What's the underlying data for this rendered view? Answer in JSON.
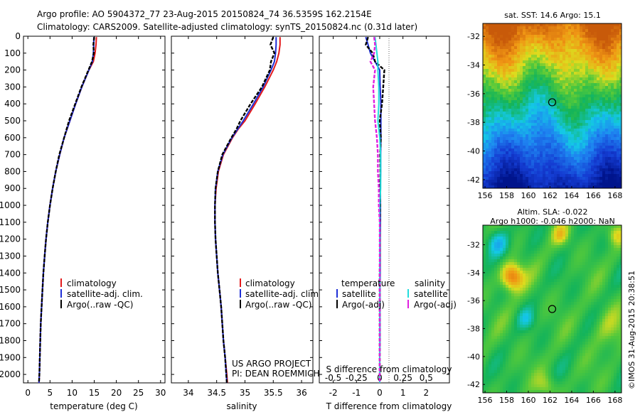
{
  "header": {
    "line1": "Argo profile: AO 5904372_77 23-Aug-2015 20150824_74 36.5359S 162.2154E",
    "line2": "Climatology: CARS2009. Satellite-adjusted climatology: synTS_20150824.nc (0.31d later)"
  },
  "colors": {
    "climatology": "#e31a1c",
    "satellite": "#1f2fd6",
    "argo": "#000000",
    "sat_salinity": "#22dddd",
    "argo_salinity": "#e020e0"
  },
  "chart_data": [
    {
      "id": "temperature",
      "type": "line",
      "xlabel": "temperature (deg C)",
      "xlim": [
        -1,
        31
      ],
      "xticks": [
        0,
        5,
        10,
        15,
        20,
        25,
        30
      ],
      "ylim": [
        2050,
        0
      ],
      "yticks": [
        0,
        100,
        200,
        300,
        400,
        500,
        600,
        700,
        800,
        900,
        1000,
        1100,
        1200,
        1300,
        1400,
        1500,
        1600,
        1700,
        1800,
        1900,
        2000
      ],
      "legend": [
        "climatology",
        "satellite-adj. clim.",
        "Argo(..raw -QC)"
      ],
      "depth": [
        5,
        50,
        100,
        150,
        200,
        300,
        400,
        500,
        600,
        700,
        800,
        900,
        1000,
        1100,
        1200,
        1300,
        1400,
        1500,
        1600,
        1700,
        1800,
        1900,
        2000,
        2050
      ],
      "series": [
        {
          "name": "climatology",
          "color_key": "climatology",
          "values": [
            15.5,
            15.4,
            15.2,
            14.8,
            13.8,
            12.2,
            10.8,
            9.5,
            8.2,
            7.2,
            6.3,
            5.6,
            5.0,
            4.5,
            4.1,
            3.8,
            3.5,
            3.3,
            3.1,
            2.9,
            2.8,
            2.7,
            2.6,
            2.5
          ]
        },
        {
          "name": "satellite-adj. clim.",
          "color_key": "satellite",
          "values": [
            14.9,
            14.9,
            14.8,
            14.6,
            13.8,
            12.2,
            10.8,
            9.5,
            8.2,
            7.2,
            6.3,
            5.6,
            5.0,
            4.5,
            4.1,
            3.8,
            3.5,
            3.3,
            3.1,
            2.9,
            2.8,
            2.7,
            2.6,
            2.5
          ]
        },
        {
          "name": "Argo(..raw -QC)",
          "color_key": "argo",
          "values": [
            15.0,
            14.8,
            14.9,
            14.5,
            13.7,
            12.1,
            10.7,
            9.3,
            8.2,
            7.1,
            6.3,
            5.6,
            5.0,
            4.5,
            4.1,
            3.8,
            3.5,
            3.3,
            3.1,
            2.9,
            2.8,
            2.7,
            2.6,
            2.5
          ]
        }
      ]
    },
    {
      "id": "salinity",
      "type": "line",
      "xlabel": "salinity",
      "xlim": [
        33.7,
        36.2
      ],
      "xticks": [
        34,
        34.5,
        35,
        35.5,
        36
      ],
      "xticklabels": [
        "34",
        "34.5",
        "35",
        "35.5",
        "36"
      ],
      "ylim": [
        2050,
        0
      ],
      "legend": [
        "climatology",
        "satellite-adj. clim.",
        "Argo(..raw -QC)"
      ],
      "annotation": [
        "US ARGO PROJECT",
        "PI: DEAN ROEMMICH"
      ],
      "depth": [
        5,
        50,
        100,
        150,
        200,
        300,
        400,
        500,
        550,
        600,
        700,
        800,
        900,
        1000,
        1100,
        1200,
        1300,
        1400,
        1500,
        1600,
        1700,
        1800,
        1900,
        2000,
        2050
      ],
      "series": [
        {
          "name": "climatology",
          "color_key": "climatology",
          "values": [
            35.62,
            35.62,
            35.6,
            35.56,
            35.5,
            35.35,
            35.18,
            35.0,
            34.88,
            34.78,
            34.62,
            34.53,
            34.49,
            34.47,
            34.47,
            34.48,
            34.5,
            34.52,
            34.55,
            34.58,
            34.6,
            34.62,
            34.65,
            34.68,
            34.69
          ]
        },
        {
          "name": "satellite-adj. clim.",
          "color_key": "satellite",
          "values": [
            35.55,
            35.55,
            35.54,
            35.52,
            35.46,
            35.32,
            35.15,
            34.97,
            34.87,
            34.77,
            34.61,
            34.52,
            34.48,
            34.47,
            34.47,
            34.48,
            34.5,
            34.52,
            34.55,
            34.58,
            34.6,
            34.62,
            34.65,
            34.67,
            34.68
          ]
        },
        {
          "name": "Argo(..raw -QC)",
          "color_key": "argo",
          "values": [
            35.5,
            35.45,
            35.52,
            35.46,
            35.44,
            35.3,
            35.1,
            34.92,
            34.85,
            34.76,
            34.6,
            34.52,
            34.48,
            34.47,
            34.47,
            34.48,
            34.5,
            34.52,
            34.55,
            34.58,
            34.6,
            34.62,
            34.65,
            34.67,
            34.68
          ]
        }
      ]
    },
    {
      "id": "difference",
      "type": "line",
      "xlabel": "T difference from climatology",
      "x2label": "S difference from climatology",
      "xlim": [
        -2.6,
        3.0
      ],
      "xticks": [
        -2,
        -1,
        0,
        1,
        2
      ],
      "x2ticks": [
        -0.5,
        -0.25,
        0,
        0.25,
        0.5
      ],
      "x2ticklabels": [
        "-0.5",
        "-0.25",
        "0",
        "0.25",
        "0.5"
      ],
      "ylim": [
        2050,
        0
      ],
      "legend_titles": [
        "temperature",
        "salinity"
      ],
      "legend": [
        "satellite",
        "Argo(-adj)",
        "satellite",
        "Argo(-adj)"
      ],
      "depth": [
        5,
        50,
        100,
        150,
        200,
        300,
        400,
        500,
        600,
        700,
        800,
        900,
        1000,
        1100,
        1200,
        1300,
        1400,
        1500,
        1600,
        1700,
        1800,
        1900,
        2000,
        2050
      ],
      "series": [
        {
          "name": "satellite",
          "group": "temperature",
          "color_key": "satellite",
          "values": [
            -0.6,
            -0.5,
            -0.4,
            -0.2,
            0.0,
            0.02,
            0.05,
            0.05,
            0.05,
            0.04,
            0.04,
            0.03,
            0.03,
            0.03,
            0.02,
            0.02,
            0.02,
            0.01,
            0.01,
            0.01,
            0.01,
            0.0,
            0.0,
            0.0
          ]
        },
        {
          "name": "Argo(-adj)",
          "group": "temperature",
          "color_key": "argo",
          "values": [
            -0.5,
            -0.6,
            -0.3,
            -0.2,
            0.2,
            0.15,
            0.1,
            0.0,
            0.05,
            0.02,
            0.03,
            0.02,
            0.02,
            0.01,
            0.01,
            0.01,
            0.0,
            0.0,
            0.0,
            0.0,
            0.0,
            0.0,
            0.0,
            0.0
          ]
        },
        {
          "name": "satellite",
          "group": "salinity",
          "color_key": "sat_salinity",
          "values": [
            -0.05,
            -0.04,
            -0.03,
            -0.02,
            -0.02,
            -0.01,
            -0.01,
            -0.02,
            0.0,
            0.01,
            0.01,
            0.01,
            0.0,
            0.0,
            0.0,
            0.0,
            0.0,
            0.0,
            0.0,
            0.0,
            0.0,
            0.0,
            0.0,
            0.0
          ]
        },
        {
          "name": "Argo(-adj)",
          "group": "salinity",
          "color_key": "argo_salinity",
          "values": [
            -0.06,
            -0.05,
            -0.06,
            -0.1,
            -0.05,
            -0.07,
            -0.06,
            -0.05,
            -0.03,
            -0.02,
            -0.02,
            -0.01,
            -0.01,
            0.0,
            0.0,
            0.0,
            0.0,
            0.0,
            0.0,
            0.0,
            0.0,
            0.0,
            0.0,
            0.0
          ]
        }
      ]
    },
    {
      "id": "sst_map",
      "type": "heatmap",
      "title": "sat. SST: 14.6 Argo: 15.1",
      "xlim": [
        155.8,
        168.6
      ],
      "ylim": [
        -42.6,
        -31.1
      ],
      "xticks": [
        156,
        158,
        160,
        162,
        164,
        166,
        168
      ],
      "yticks": [
        -32,
        -34,
        -36,
        -38,
        -40,
        -42
      ],
      "marker": {
        "lon": 162.2,
        "lat": -36.6
      }
    },
    {
      "id": "sla_map",
      "type": "heatmap",
      "title": "Altim. SLA: -0.022",
      "subtitle": "Argo h1000: -0.046 h2000: NaN",
      "xlim": [
        155.8,
        168.6
      ],
      "ylim": [
        -42.6,
        -30.6
      ],
      "xticks": [
        156,
        158,
        160,
        162,
        164,
        166,
        168
      ],
      "yticks": [
        -32,
        -34,
        -36,
        -38,
        -40,
        -42
      ],
      "marker": {
        "lon": 162.2,
        "lat": -36.6
      }
    }
  ],
  "side_label": "©IMOS 31-Aug-2015 20:38:51"
}
